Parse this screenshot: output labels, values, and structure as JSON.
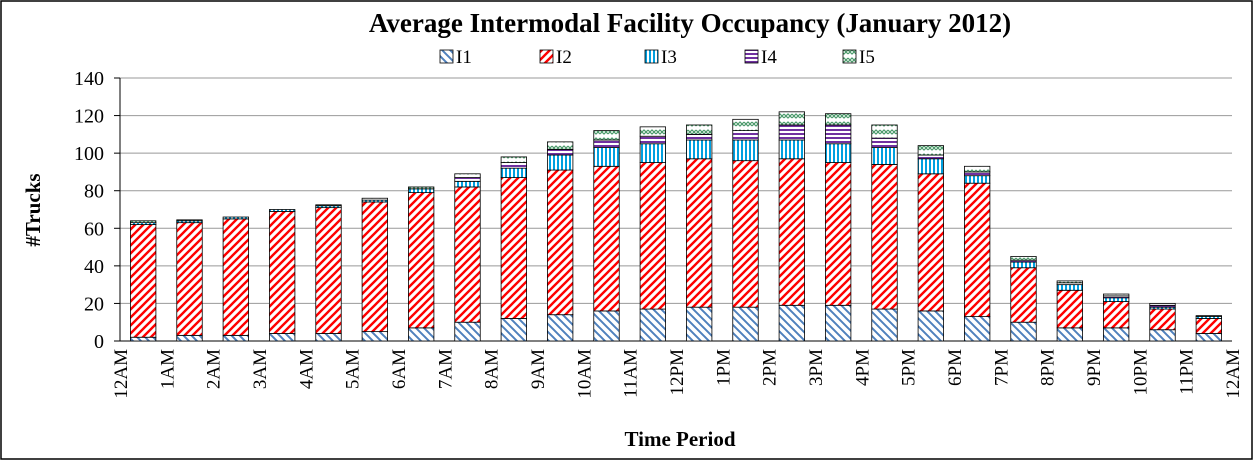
{
  "chart_data": {
    "type": "stacked_bar",
    "title": "Average Intermodal Facility Occupancy (January 2012)",
    "x_label": "Time Period",
    "y_label": "#Trucks",
    "categories": [
      "12AM",
      "1AM",
      "2AM",
      "3AM",
      "4AM",
      "5AM",
      "6AM",
      "7AM",
      "8AM",
      "9AM",
      "10AM",
      "11AM",
      "12PM",
      "1PM",
      "2PM",
      "3PM",
      "4PM",
      "5PM",
      "6PM",
      "7PM",
      "8PM",
      "9PM",
      "10PM",
      "11PM"
    ],
    "x_end_label": "12AM",
    "series": [
      {
        "name": "I1",
        "color": "#4f81bd",
        "pattern": "backslash",
        "values": [
          2,
          3,
          3,
          4,
          4,
          5,
          7,
          10,
          12,
          14,
          16,
          17,
          18,
          18,
          19,
          19,
          17,
          16,
          13,
          10,
          7,
          7,
          6,
          4
        ]
      },
      {
        "name": "I2",
        "color": "#ff0000",
        "pattern": "slash",
        "values": [
          60,
          60,
          62,
          65,
          67,
          69,
          72,
          72,
          75,
          77,
          77,
          78,
          79,
          78,
          78,
          76,
          77,
          73,
          71,
          29,
          20,
          14,
          11,
          8
        ]
      },
      {
        "name": "I3",
        "color": "#00a0e0",
        "pattern": "vertical",
        "values": [
          1,
          1,
          1,
          1,
          1,
          1,
          2,
          3,
          5,
          8,
          10,
          10,
          10,
          11,
          10,
          10,
          9,
          8,
          4,
          3,
          3,
          2,
          1,
          1
        ]
      },
      {
        "name": "I4",
        "color": "#7030a0",
        "pattern": "horizontal",
        "values": [
          0,
          0,
          0,
          0,
          0,
          0,
          0,
          2,
          3,
          3,
          4,
          4,
          3,
          5,
          8,
          10,
          5,
          2,
          2,
          1,
          1,
          1,
          1,
          0
        ]
      },
      {
        "name": "I5",
        "color": "#4a9a6a",
        "pattern": "zigzag",
        "values": [
          1,
          0.5,
          0,
          0,
          0.5,
          1,
          1,
          2,
          3,
          4,
          5,
          5,
          5,
          6,
          7,
          6,
          7,
          5,
          3,
          2,
          1,
          1,
          1,
          0.5
        ]
      }
    ],
    "ylim": [
      0,
      140
    ],
    "yticks": [
      0,
      20,
      40,
      60,
      80,
      100,
      120,
      140
    ],
    "grid": true
  }
}
